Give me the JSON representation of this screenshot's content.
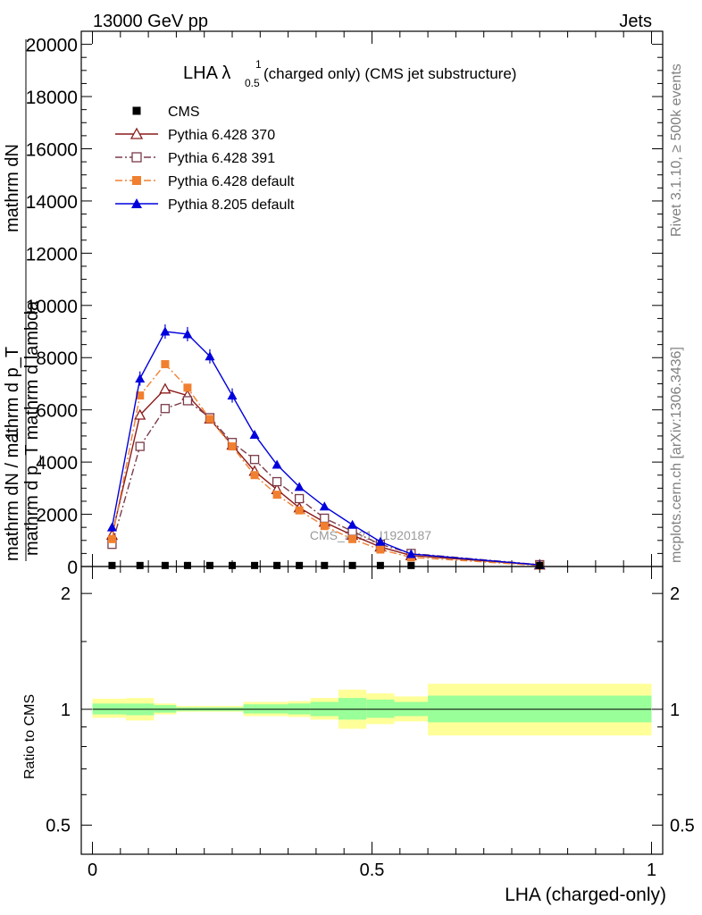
{
  "header": {
    "left": "13000 GeV pp",
    "right": "Jets"
  },
  "side_labels": {
    "rivet": "Rivet 3.1.10, ≥ 500k events",
    "mcplots": "mcplots.cern.ch [arXiv:1306.3436]"
  },
  "watermark": "CMS_2021_I1920187",
  "chart_data": [
    {
      "type": "line",
      "title_main": "LHA λ",
      "title_sup": "1",
      "title_sub": "0.5",
      "title_rest": " (charged only) (CMS jet substructure)",
      "ylabel_top": "mathrm dN",
      "ylabel_mid": "mathrm d p_T mathrm d lambda",
      "ylabel_numerator": "1",
      "ylabel_denominator": "mathrm dN / mathrm d p_T",
      "ylim": [
        0,
        20500
      ],
      "xlim": [
        -0.02,
        1.02
      ],
      "yticks": [
        0,
        2000,
        4000,
        6000,
        8000,
        10000,
        12000,
        14000,
        16000,
        18000,
        20000
      ],
      "ytick_labels": [
        "0",
        "2000",
        "4000",
        "6000",
        "8000",
        "10000",
        "12000",
        "14000",
        "16000",
        "18000",
        "20000"
      ],
      "x": [
        0.035,
        0.085,
        0.13,
        0.17,
        0.21,
        0.25,
        0.29,
        0.33,
        0.37,
        0.415,
        0.465,
        0.515,
        0.57,
        0.8
      ],
      "series": [
        {
          "name": "CMS",
          "color": "#000000",
          "marker": "square-filled",
          "dash": "none",
          "values": [
            40,
            40,
            40,
            40,
            40,
            40,
            40,
            40,
            40,
            40,
            40,
            40,
            40,
            40
          ]
        },
        {
          "name": "Pythia 6.428 370",
          "color": "#8b1a1a",
          "marker": "triangle-open",
          "dash": "solid",
          "values": [
            1200,
            5800,
            6800,
            6550,
            5650,
            4650,
            3650,
            2950,
            2250,
            1700,
            1200,
            750,
            420,
            60
          ]
        },
        {
          "name": "Pythia 6.428 391",
          "color": "#7a3b4a",
          "marker": "square-open",
          "dash": "dashdot",
          "values": [
            850,
            4600,
            6050,
            6350,
            5700,
            4750,
            4100,
            3250,
            2600,
            1850,
            1350,
            850,
            500,
            70
          ]
        },
        {
          "name": "Pythia 6.428 default",
          "color": "#f08030",
          "marker": "square-filled",
          "dash": "dashdot",
          "values": [
            1050,
            6550,
            7750,
            6850,
            5650,
            4600,
            3500,
            2750,
            2150,
            1550,
            1050,
            650,
            350,
            40
          ]
        },
        {
          "name": "Pythia 8.205 default",
          "color": "#0000dd",
          "marker": "triangle-filled",
          "dash": "solid",
          "values": [
            1500,
            7200,
            9000,
            8900,
            8050,
            6550,
            5050,
            3900,
            3050,
            2300,
            1600,
            950,
            480,
            60
          ]
        }
      ]
    },
    {
      "type": "area",
      "ylabel": "Ratio to CMS",
      "xlabel": "LHA (charged-only)",
      "scale": "log",
      "ylim": [
        0.42,
        2.35
      ],
      "yticks": [
        0.5,
        1,
        2
      ],
      "ytick_labels": [
        "0.5",
        "1",
        "2"
      ],
      "xticks": [
        0,
        0.5,
        1
      ],
      "xtick_labels": [
        "0",
        "0.5",
        "1"
      ],
      "bands": [
        {
          "x0": 0.0,
          "x1": 0.06,
          "inner": [
            0.97,
            1.035
          ],
          "outer": [
            0.95,
            1.065
          ]
        },
        {
          "x0": 0.06,
          "x1": 0.11,
          "inner": [
            0.965,
            1.035
          ],
          "outer": [
            0.935,
            1.07
          ]
        },
        {
          "x0": 0.11,
          "x1": 0.15,
          "inner": [
            0.98,
            1.025
          ],
          "outer": [
            0.97,
            1.035
          ]
        },
        {
          "x0": 0.15,
          "x1": 0.19,
          "inner": [
            0.99,
            1.012
          ],
          "outer": [
            0.985,
            1.02
          ]
        },
        {
          "x0": 0.19,
          "x1": 0.23,
          "inner": [
            0.99,
            1.012
          ],
          "outer": [
            0.985,
            1.02
          ]
        },
        {
          "x0": 0.23,
          "x1": 0.27,
          "inner": [
            0.99,
            1.012
          ],
          "outer": [
            0.985,
            1.02
          ]
        },
        {
          "x0": 0.27,
          "x1": 0.31,
          "inner": [
            0.975,
            1.03
          ],
          "outer": [
            0.96,
            1.045
          ]
        },
        {
          "x0": 0.31,
          "x1": 0.35,
          "inner": [
            0.975,
            1.03
          ],
          "outer": [
            0.96,
            1.045
          ]
        },
        {
          "x0": 0.35,
          "x1": 0.39,
          "inner": [
            0.97,
            1.035
          ],
          "outer": [
            0.955,
            1.05
          ]
        },
        {
          "x0": 0.39,
          "x1": 0.44,
          "inner": [
            0.96,
            1.045
          ],
          "outer": [
            0.94,
            1.07
          ]
        },
        {
          "x0": 0.44,
          "x1": 0.49,
          "inner": [
            0.94,
            1.07
          ],
          "outer": [
            0.89,
            1.125
          ]
        },
        {
          "x0": 0.49,
          "x1": 0.54,
          "inner": [
            0.95,
            1.06
          ],
          "outer": [
            0.915,
            1.1
          ]
        },
        {
          "x0": 0.54,
          "x1": 0.6,
          "inner": [
            0.96,
            1.045
          ],
          "outer": [
            0.93,
            1.08
          ]
        },
        {
          "x0": 0.6,
          "x1": 1.0,
          "inner": [
            0.925,
            1.085
          ],
          "outer": [
            0.855,
            1.165
          ]
        }
      ],
      "band_inner_color": "#99ff99",
      "band_outer_color": "#ffff99"
    }
  ]
}
